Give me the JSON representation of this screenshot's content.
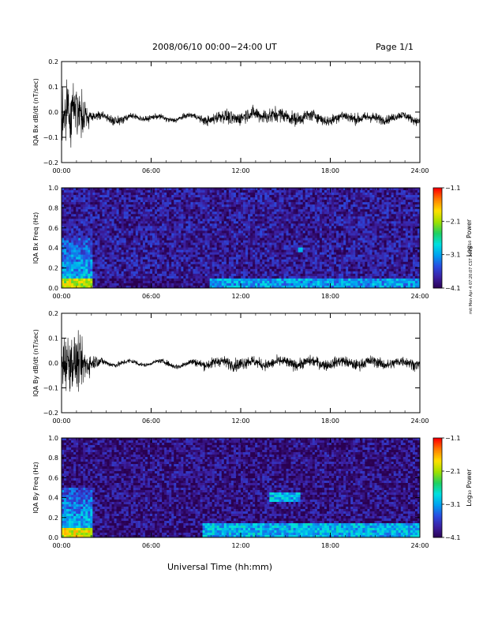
{
  "header": {
    "title": "2008/06/10  00:00−24:00 UT",
    "page": "Page 1/1"
  },
  "footer": {
    "xlabel": "Universal Time (hh:mm)"
  },
  "side_note": "mit Mon Apr 4 07:20:07 CST 2019",
  "colors": {
    "background": "#ffffff",
    "axes": "#000000",
    "trace": "#000000",
    "colormap": [
      "#2a0050",
      "#3b1fa0",
      "#2a4be0",
      "#00a0f0",
      "#00e0e0",
      "#20d060",
      "#a0e000",
      "#ffe000",
      "#ff8000",
      "#ff0000"
    ]
  },
  "chart_data": [
    {
      "type": "line",
      "id": "bx-dbdt",
      "ylabel": "IQA Bx dB/dt (nT/sec)",
      "xlim": [
        "00:00",
        "24:00"
      ],
      "ylim": [
        -0.2,
        0.2
      ],
      "x_ticks": [
        "00:00",
        "06:00",
        "12:00",
        "18:00",
        "24:00"
      ],
      "y_ticks": [
        "0.2",
        "0.1",
        "0.0",
        "−0.1",
        "−0.2"
      ],
      "series": [
        {
          "x": [
            "00:00",
            "00:30",
            "01:00",
            "01:30",
            "02:00",
            "03:00",
            "04:00",
            "05:00",
            "06:00",
            "07:00",
            "08:00",
            "09:00",
            "10:00",
            "11:00",
            "12:00",
            "13:00",
            "14:00",
            "15:00",
            "16:00",
            "17:00",
            "18:00",
            "19:00",
            "20:00",
            "21:00",
            "22:00",
            "23:00",
            "24:00"
          ],
          "y_baseline": [
            0.0,
            0.0,
            0.0,
            -0.01,
            -0.02,
            -0.02,
            -0.03,
            -0.02,
            -0.02,
            -0.03,
            -0.02,
            -0.02,
            -0.03,
            -0.02,
            -0.02,
            -0.01,
            -0.01,
            -0.02,
            -0.02,
            -0.02,
            -0.03,
            -0.02,
            -0.02,
            -0.03,
            -0.02,
            -0.02,
            -0.03
          ],
          "y_amplitude": [
            0.2,
            0.2,
            0.2,
            0.12,
            0.04,
            0.03,
            0.03,
            0.02,
            0.02,
            0.02,
            0.02,
            0.02,
            0.04,
            0.05,
            0.05,
            0.05,
            0.06,
            0.05,
            0.05,
            0.04,
            0.04,
            0.04,
            0.04,
            0.04,
            0.03,
            0.03,
            0.03
          ]
        }
      ]
    },
    {
      "type": "heatmap",
      "id": "bx-freq",
      "ylabel": "IQA Bx Freq (Hz)",
      "xlim": [
        "00:00",
        "24:00"
      ],
      "ylim": [
        0.0,
        1.0
      ],
      "x_ticks": [
        "00:00",
        "06:00",
        "12:00",
        "18:00",
        "24:00"
      ],
      "y_ticks": [
        "1.0",
        "0.8",
        "0.6",
        "0.4",
        "0.2",
        "0.0"
      ],
      "colorbar": {
        "label": "Log₁₀ Power",
        "range": [
          -4.1,
          -1.1
        ],
        "ticks": [
          "−1.1",
          "−2.1",
          "−3.1",
          "−4.1"
        ]
      },
      "features": [
        {
          "time": "00:00–02:00",
          "freq_hz": "0.0–0.1",
          "log_power": -2.0
        },
        {
          "time": "00:00–02:00",
          "freq_hz": "0.1–0.5",
          "log_power": -3.0
        },
        {
          "time": "10:00–24:00",
          "freq_hz": "0.0–0.1",
          "log_power": -3.1
        },
        {
          "time": "16:00",
          "freq_hz": "0.35–0.4",
          "log_power": -3.0
        },
        {
          "time": "all",
          "freq_hz": "0.1–1.0",
          "log_power": -3.8
        }
      ]
    },
    {
      "type": "line",
      "id": "by-dbdt",
      "ylabel": "IQA By dB/dt (nT/sec)",
      "xlim": [
        "00:00",
        "24:00"
      ],
      "ylim": [
        -0.2,
        0.2
      ],
      "x_ticks": [
        "00:00",
        "06:00",
        "12:00",
        "18:00",
        "24:00"
      ],
      "y_ticks": [
        "0.2",
        "0.1",
        "0.0",
        "−0.1",
        "−0.2"
      ],
      "series": [
        {
          "x": [
            "00:00",
            "00:30",
            "01:00",
            "01:30",
            "02:00",
            "03:00",
            "04:00",
            "05:00",
            "06:00",
            "07:00",
            "08:00",
            "09:00",
            "10:00",
            "11:00",
            "12:00",
            "13:00",
            "14:00",
            "15:00",
            "16:00",
            "17:00",
            "18:00",
            "19:00",
            "20:00",
            "21:00",
            "22:00",
            "23:00",
            "24:00"
          ],
          "y_baseline": [
            0.0,
            0.0,
            0.0,
            0.0,
            0.0,
            0.0,
            0.0,
            0.0,
            0.0,
            0.0,
            -0.01,
            0.0,
            0.0,
            0.0,
            0.0,
            0.0,
            0.0,
            0.0,
            0.0,
            0.0,
            0.0,
            0.0,
            0.0,
            0.0,
            0.0,
            0.0,
            0.0
          ],
          "y_amplitude": [
            0.2,
            0.2,
            0.2,
            0.15,
            0.06,
            0.02,
            0.02,
            0.02,
            0.01,
            0.02,
            0.02,
            0.03,
            0.04,
            0.04,
            0.05,
            0.04,
            0.04,
            0.04,
            0.04,
            0.04,
            0.04,
            0.04,
            0.04,
            0.04,
            0.04,
            0.04,
            0.04
          ]
        }
      ]
    },
    {
      "type": "heatmap",
      "id": "by-freq",
      "ylabel": "IQA By Freq (Hz)",
      "xlim": [
        "00:00",
        "24:00"
      ],
      "ylim": [
        0.0,
        1.0
      ],
      "x_ticks": [
        "00:00",
        "06:00",
        "12:00",
        "18:00",
        "24:00"
      ],
      "y_ticks": [
        "1.0",
        "0.8",
        "0.6",
        "0.4",
        "0.2",
        "0.0"
      ],
      "colorbar": {
        "label": "Log₁₀ Power",
        "range": [
          -4.1,
          -1.1
        ],
        "ticks": [
          "−1.1",
          "−2.1",
          "−3.1",
          "−4.1"
        ]
      },
      "features": [
        {
          "time": "00:00–02:00",
          "freq_hz": "0.0–0.1",
          "log_power": -1.9
        },
        {
          "time": "00:00–02:00",
          "freq_hz": "0.1–0.5",
          "log_power": -3.0
        },
        {
          "time": "09:30–24:00",
          "freq_hz": "0.0–0.15",
          "log_power": -3.0
        },
        {
          "time": "14:00–16:00",
          "freq_hz": "0.35–0.45",
          "log_power": -3.0
        },
        {
          "time": "all",
          "freq_hz": "0.1–1.0",
          "log_power": -3.9
        }
      ]
    }
  ]
}
